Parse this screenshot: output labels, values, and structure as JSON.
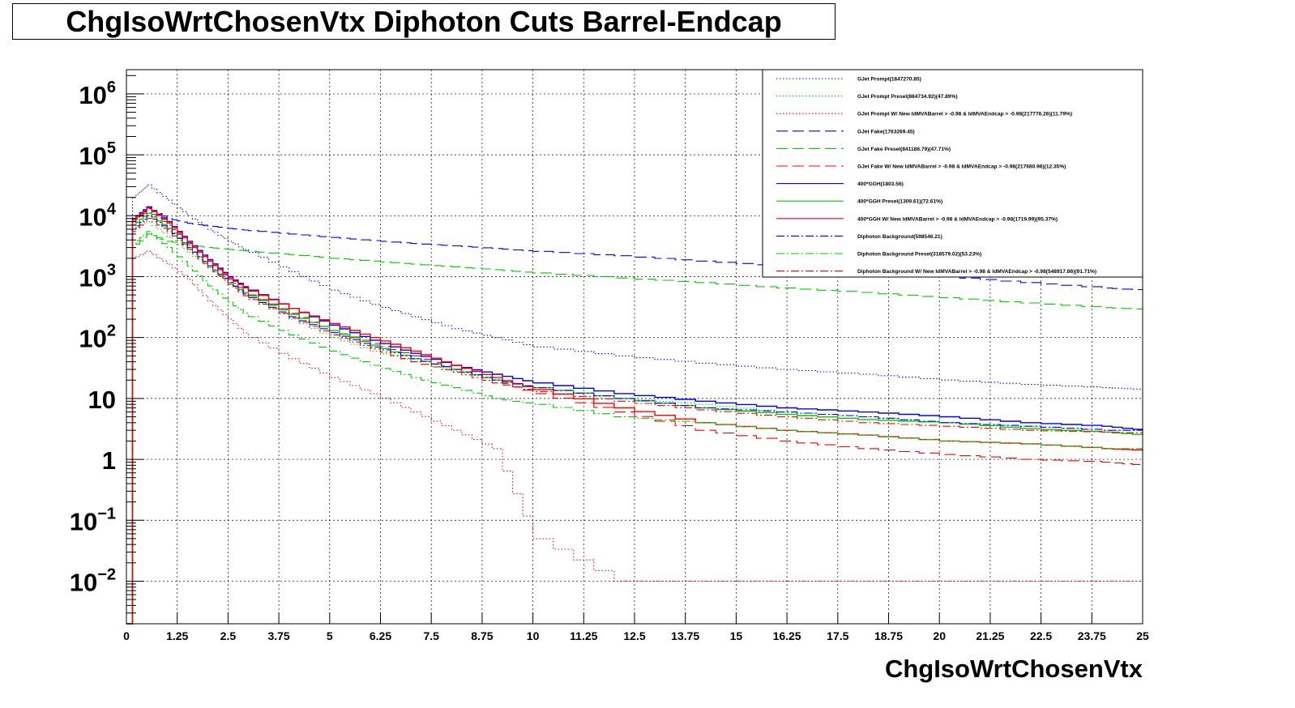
{
  "title": "ChgIsoWrtChosenVtx Diphoton Cuts Barrel-Endcap",
  "chart_data": {
    "type": "line",
    "title": "ChgIsoWrtChosenVtx Diphoton Cuts Barrel-Endcap",
    "xlabel": "ChgIsoWrtChosenVtx",
    "ylabel": "",
    "xlim": [
      0,
      25
    ],
    "ylim": [
      0.002,
      2500000
    ],
    "y_scale": "log",
    "grid": true,
    "legend_position": "top-right",
    "x_ticks": [
      "0",
      "1.25",
      "2.5",
      "3.75",
      "5",
      "6.25",
      "7.5",
      "8.75",
      "10",
      "11.25",
      "12.5",
      "13.75",
      "15",
      "16.25",
      "17.5",
      "18.75",
      "20",
      "21.25",
      "22.5",
      "23.75",
      "25"
    ],
    "x_tick_values": [
      0,
      1.25,
      2.5,
      3.75,
      5,
      6.25,
      7.5,
      8.75,
      10,
      11.25,
      12.5,
      13.75,
      15,
      16.25,
      17.5,
      18.75,
      20,
      21.25,
      22.5,
      23.75,
      25
    ],
    "y_ticks": [
      {
        "value": 1000000,
        "base": "10",
        "exp": "6"
      },
      {
        "value": 100000,
        "base": "10",
        "exp": "5"
      },
      {
        "value": 10000,
        "base": "10",
        "exp": "4"
      },
      {
        "value": 1000,
        "base": "10",
        "exp": "3"
      },
      {
        "value": 100,
        "base": "10",
        "exp": "2"
      },
      {
        "value": 10,
        "base": "10",
        "exp": ""
      },
      {
        "value": 1,
        "base": "1",
        "exp": ""
      },
      {
        "value": 0.1,
        "base": "10",
        "exp": "−1"
      },
      {
        "value": 0.01,
        "base": "10",
        "exp": "−2"
      }
    ],
    "x_sample": [
      0.15,
      0.5,
      1.0,
      1.5,
      2.0,
      2.5,
      3.0,
      4.0,
      5.0,
      6.0,
      7.0,
      8.0,
      9.0,
      10.0,
      12.0,
      14.0,
      16.0,
      18.0,
      20.0,
      22.0,
      24.0,
      25.0
    ],
    "series": [
      {
        "name": "GJet Prompt(1847270.85)",
        "color": "#0000ff",
        "dash": "dotted",
        "values": [
          20000,
          32000,
          18000,
          10000,
          6000,
          3800,
          2500,
          1200,
          600,
          350,
          220,
          140,
          100,
          70,
          50,
          38,
          30,
          25,
          20,
          17,
          15,
          14
        ]
      },
      {
        "name": "GJet Prompt Presel(884734.92)(47.89%)",
        "color": "#00cc00",
        "dash": "dotted",
        "values": [
          6000,
          8000,
          4500,
          2500,
          1400,
          800,
          450,
          200,
          100,
          60,
          40,
          28,
          20,
          15,
          10,
          8,
          6,
          5,
          4,
          3.5,
          3,
          3
        ]
      },
      {
        "name": "GJet Prompt W/ New IdMVABarrel > -0.98 & IdMVAEndcap > -0.98(217776.26)(11.79%)",
        "color": "#ff0000",
        "dash": "dotted",
        "values": [
          2000,
          2600,
          1600,
          900,
          400,
          200,
          100,
          45,
          22,
          12,
          6,
          3,
          1.5,
          0.05,
          0.01,
          0.01,
          0.01,
          0.01,
          0.01,
          0.01,
          0.01,
          0.01
        ]
      },
      {
        "name": "GJet Fake(1763269.45)",
        "color": "#0000ff",
        "dash": "longdash",
        "values": [
          8000,
          13000,
          9000,
          7500,
          6800,
          6200,
          5700,
          5000,
          4400,
          3900,
          3500,
          3200,
          2900,
          2600,
          2200,
          1800,
          1500,
          1250,
          1000,
          800,
          650,
          600
        ]
      },
      {
        "name": "GJet Fake Presel(841186.79)(47.71%)",
        "color": "#00cc00",
        "dash": "longdash",
        "values": [
          3000,
          5000,
          3800,
          3300,
          3000,
          2800,
          2600,
          2300,
          2000,
          1800,
          1600,
          1450,
          1300,
          1150,
          950,
          800,
          650,
          550,
          450,
          370,
          310,
          290
        ]
      },
      {
        "name": "GJet Fake W/ New IdMVABarrel > -0.98 & IdMVAEndcap > -0.98(217680.96)(12.35%)",
        "color": "#ff0000",
        "dash": "longdash",
        "values": [
          8000,
          12000,
          7000,
          3500,
          1800,
          900,
          500,
          250,
          130,
          80,
          50,
          30,
          20,
          12,
          6,
          3,
          2,
          1.5,
          1.2,
          1,
          0.9,
          0.8
        ]
      },
      {
        "name": "400*GGH(1803.56)",
        "color": "#0000ff",
        "dash": "solid",
        "values": [
          9000,
          14000,
          8000,
          3800,
          1900,
          1000,
          600,
          300,
          160,
          90,
          55,
          35,
          25,
          18,
          12,
          9,
          7,
          6,
          5,
          4,
          3.5,
          3
        ]
      },
      {
        "name": "400*GGH Presel(1309.61)(72.61%)",
        "color": "#00cc00",
        "dash": "solid",
        "values": [
          7000,
          11000,
          6200,
          3000,
          1500,
          800,
          480,
          240,
          130,
          75,
          45,
          30,
          20,
          15,
          10,
          7,
          5.5,
          4.5,
          4,
          3.2,
          2.8,
          2.5
        ]
      },
      {
        "name": "400*GGH W/ New IdMVABarrel > -0.98 & IdMVAEndcap > -0.98(1719.99)(95.37%)",
        "color": "#ff0000",
        "dash": "solid",
        "values": [
          8500,
          13500,
          7600,
          3600,
          1800,
          950,
          580,
          300,
          170,
          100,
          60,
          35,
          22,
          14,
          7,
          4,
          3,
          2.5,
          2,
          1.8,
          1.5,
          1.4
        ]
      },
      {
        "name": "Diphoton Background(598546.21)",
        "color": "#0000ff",
        "dash": "dashdot",
        "values": [
          6000,
          10000,
          6000,
          3000,
          1500,
          800,
          450,
          220,
          120,
          70,
          45,
          30,
          20,
          15,
          10,
          7,
          6,
          5,
          4,
          3.5,
          3,
          3
        ]
      },
      {
        "name": "Diphoton Background Presel(318579.02)(53.23%)",
        "color": "#00cc00",
        "dash": "dashdot",
        "values": [
          3500,
          5500,
          3000,
          1500,
          700,
          380,
          220,
          110,
          60,
          35,
          22,
          15,
          10,
          8,
          5,
          4,
          3,
          2.5,
          2,
          1.8,
          1.5,
          1.5
        ]
      },
      {
        "name": "Diphoton Background W/ New IdMVABarrel > -0.98 & IdMVAEndcap > -0.98(548917.86)(91.71%)",
        "color": "#ff0000",
        "dash": "dashdot",
        "values": [
          5500,
          9000,
          5500,
          2800,
          1400,
          750,
          420,
          210,
          110,
          65,
          40,
          27,
          18,
          13,
          9,
          6.5,
          5,
          4,
          3.5,
          3,
          2.8,
          2.7
        ]
      }
    ]
  }
}
